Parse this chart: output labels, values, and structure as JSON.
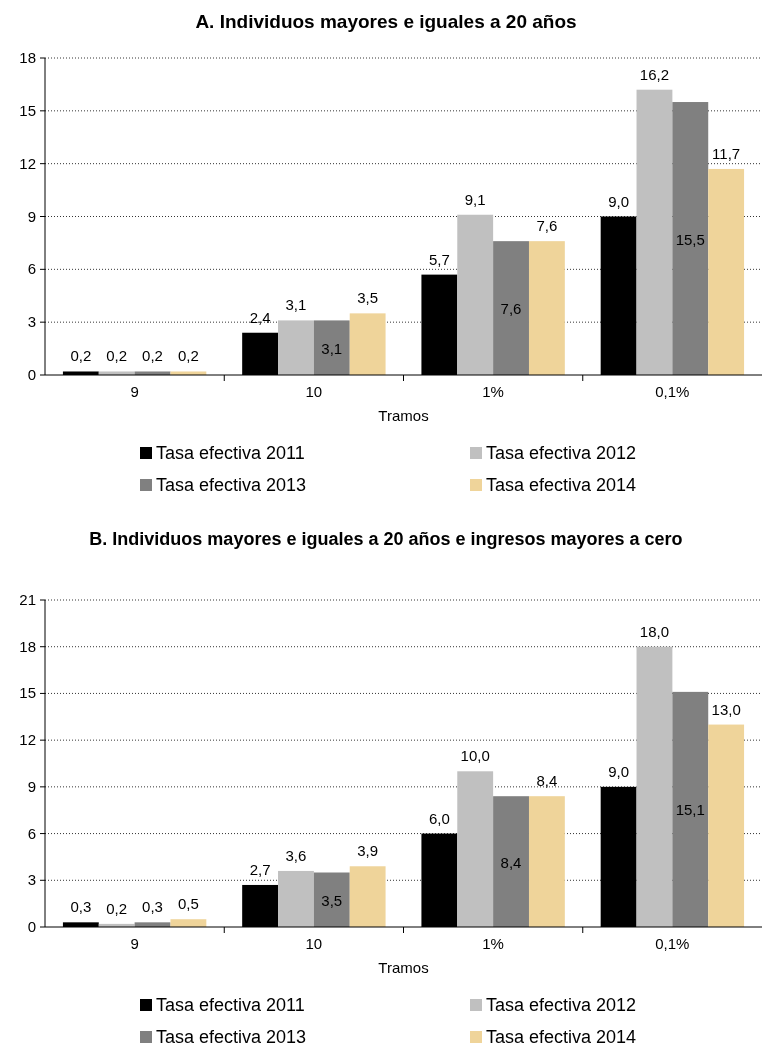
{
  "chart_data": [
    {
      "type": "bar",
      "title": "A. Individuos mayores e iguales a 20 años",
      "xlabel": "Tramos",
      "categories": [
        "9",
        "10",
        "1%",
        "0,1%"
      ],
      "ylim": [
        0,
        18
      ],
      "yticks": [
        0,
        3,
        6,
        9,
        12,
        15,
        18
      ],
      "grid": "y",
      "legend": "bottom",
      "series": [
        {
          "name": "Tasa efectiva 2011",
          "color": "#000000",
          "values": [
            0.2,
            2.4,
            5.7,
            9.0
          ],
          "value_labels": [
            "0,2",
            "2,4",
            "5,7",
            "9,0"
          ]
        },
        {
          "name": "Tasa efectiva 2012",
          "color": "#c0c0c0",
          "values": [
            0.2,
            3.1,
            9.1,
            16.2
          ],
          "value_labels": [
            "0,2",
            "3,1",
            "9,1",
            "16,2"
          ]
        },
        {
          "name": "Tasa efectiva 2013",
          "color": "#808080",
          "values": [
            0.2,
            3.1,
            7.6,
            15.5
          ],
          "value_labels": [
            "0,2",
            "3,1",
            "7,6",
            "15,5"
          ]
        },
        {
          "name": "Tasa efectiva 2014",
          "color": "#efd49a",
          "values": [
            0.2,
            3.5,
            7.6,
            11.7
          ],
          "value_labels": [
            "0,2",
            "3,5",
            "7,6",
            "11,7"
          ]
        }
      ]
    },
    {
      "type": "bar",
      "title": "B. Individuos mayores e iguales a 20 años e ingresos mayores a cero",
      "xlabel": "Tramos",
      "categories": [
        "9",
        "10",
        "1%",
        "0,1%"
      ],
      "ylim": [
        0,
        21
      ],
      "yticks": [
        0,
        3,
        6,
        9,
        12,
        15,
        18,
        21
      ],
      "grid": "y",
      "legend": "bottom",
      "series": [
        {
          "name": "Tasa efectiva 2011",
          "color": "#000000",
          "values": [
            0.3,
            2.7,
            6.0,
            9.0
          ],
          "value_labels": [
            "0,3",
            "2,7",
            "6,0",
            "9,0"
          ]
        },
        {
          "name": "Tasa efectiva 2012",
          "color": "#c0c0c0",
          "values": [
            0.2,
            3.6,
            10.0,
            18.0
          ],
          "value_labels": [
            "0,2",
            "3,6",
            "10,0",
            "18,0"
          ]
        },
        {
          "name": "Tasa efectiva 2013",
          "color": "#808080",
          "values": [
            0.3,
            3.5,
            8.4,
            15.1
          ],
          "value_labels": [
            "0,3",
            "3,5",
            "8,4",
            "15,1"
          ]
        },
        {
          "name": "Tasa efectiva 2014",
          "color": "#efd49a",
          "values": [
            0.5,
            3.9,
            8.4,
            13.0
          ],
          "value_labels": [
            "0,5",
            "3,9",
            "8,4",
            "13,0"
          ]
        }
      ]
    }
  ]
}
